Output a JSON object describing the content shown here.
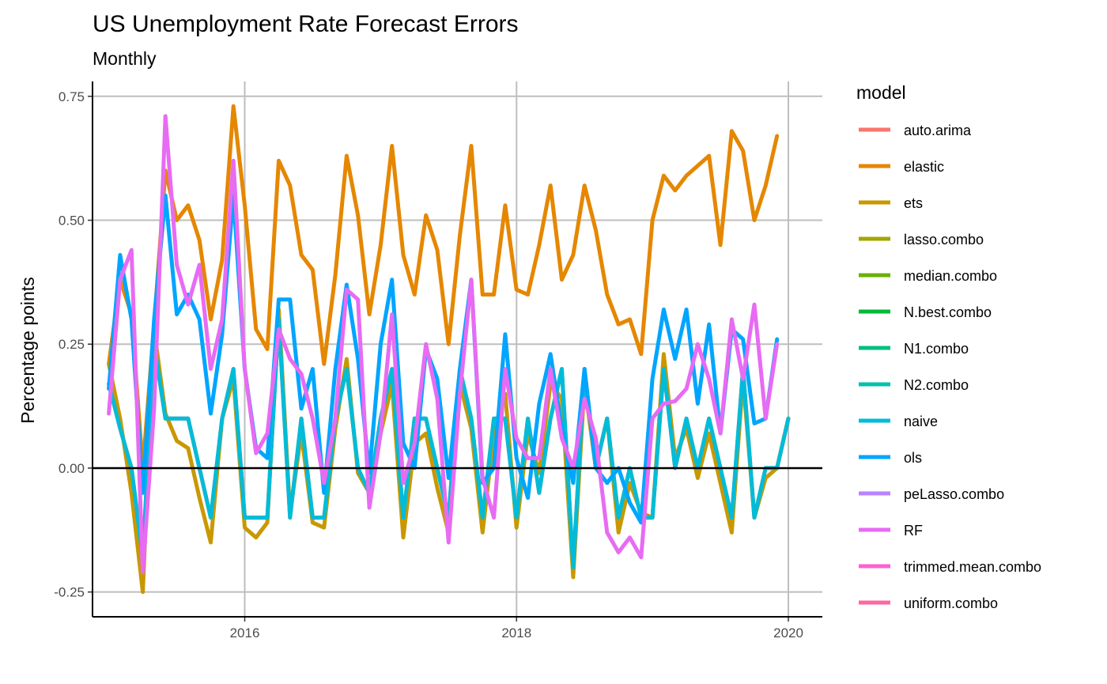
{
  "chart_data": {
    "type": "line",
    "title": "US Unemployment Rate Forecast Errors",
    "subtitle": "Monthly",
    "ylabel": "Percentage points",
    "xlabel": "",
    "x_ticks": [
      {
        "value": 2016,
        "label": "2016"
      },
      {
        "value": 2018,
        "label": "2018"
      },
      {
        "value": 2020,
        "label": "2020"
      }
    ],
    "y_ticks": [
      {
        "value": -0.25,
        "label": "-0.25"
      },
      {
        "value": 0,
        "label": "0.00"
      },
      {
        "value": 0.25,
        "label": "0.25"
      },
      {
        "value": 0.5,
        "label": "0.50"
      },
      {
        "value": 0.75,
        "label": "0.75"
      }
    ],
    "xlim": [
      2014.88,
      2020.25
    ],
    "ylim": [
      -0.3,
      0.78
    ],
    "grid": true,
    "zero_line": true,
    "legend_title": "model",
    "legend_position": "right",
    "x_start": 2015.0,
    "x_step": 0.08333,
    "series": [
      {
        "name": "auto.arima",
        "color": "#F8766D",
        "values": [
          0.17,
          0.08,
          0.0,
          -0.18,
          0.25,
          0.1,
          0.1,
          0.1,
          0.0,
          -0.1,
          0.1,
          0.2,
          -0.1,
          -0.1,
          -0.1,
          0.3,
          -0.1,
          0.1,
          -0.1,
          -0.1,
          0.1,
          0.2,
          0.0,
          -0.05,
          0.1,
          0.2,
          -0.1,
          0.1,
          0.1,
          0.0,
          -0.1,
          0.2,
          0.1,
          -0.1,
          0.1,
          0.1,
          -0.1,
          0.1,
          -0.05,
          0.1,
          0.2,
          -0.2,
          0.2,
          0.0,
          0.1,
          -0.1,
          0.0,
          -0.1,
          -0.1,
          0.2,
          0.0,
          0.1,
          0.0,
          0.1,
          0.0,
          -0.1,
          0.2,
          -0.1,
          0.0,
          0.0,
          0.1
        ]
      },
      {
        "name": "elastic",
        "color": "#E58700",
        "values": [
          0.21,
          0.38,
          0.31,
          0.0,
          0.29,
          0.6,
          0.5,
          0.53,
          0.46,
          0.3,
          0.42,
          0.73,
          0.53,
          0.28,
          0.24,
          0.62,
          0.57,
          0.43,
          0.4,
          0.21,
          0.39,
          0.63,
          0.51,
          0.31,
          0.45,
          0.65,
          0.43,
          0.35,
          0.51,
          0.44,
          0.25,
          0.47,
          0.65,
          0.35,
          0.35,
          0.53,
          0.36,
          0.35,
          0.45,
          0.57,
          0.38,
          0.43,
          0.57,
          0.48,
          0.35,
          0.29,
          0.3,
          0.23,
          0.5,
          0.59,
          0.56,
          0.59,
          0.61,
          0.63,
          0.45,
          0.68,
          0.64,
          0.5,
          0.57,
          0.67
        ]
      },
      {
        "name": "ets",
        "color": "#C99800",
        "values": [
          0.21,
          0.1,
          -0.05,
          -0.25,
          0.28,
          0.11,
          0.055,
          0.04,
          -0.06,
          -0.15,
          0.1,
          0.18,
          -0.12,
          -0.14,
          -0.11,
          0.32,
          -0.09,
          0.07,
          -0.11,
          -0.12,
          0.08,
          0.22,
          -0.01,
          -0.05,
          0.07,
          0.17,
          -0.14,
          0.05,
          0.07,
          -0.04,
          -0.13,
          0.17,
          0.08,
          -0.13,
          0.07,
          0.15,
          -0.12,
          0.07,
          -0.01,
          0.17,
          0.14,
          -0.22,
          0.17,
          0.0,
          0.1,
          -0.13,
          -0.03,
          -0.09,
          -0.1,
          0.23,
          0.02,
          0.08,
          -0.02,
          0.07,
          -0.03,
          -0.13,
          0.18,
          -0.1,
          -0.02,
          0.0,
          0.1
        ]
      },
      {
        "name": "lasso.combo",
        "color": "#A3A500",
        "values": []
      },
      {
        "name": "median.combo",
        "color": "#6BB100",
        "values": []
      },
      {
        "name": "N.best.combo",
        "color": "#00BA38",
        "values": []
      },
      {
        "name": "N1.combo",
        "color": "#00BF7D",
        "values": []
      },
      {
        "name": "N2.combo",
        "color": "#00C0AF",
        "values": []
      },
      {
        "name": "naive",
        "color": "#00BCD8",
        "values": [
          0.17,
          0.08,
          0.0,
          -0.18,
          0.25,
          0.1,
          0.1,
          0.1,
          0.0,
          -0.1,
          0.1,
          0.2,
          -0.1,
          -0.1,
          -0.1,
          0.3,
          -0.1,
          0.1,
          -0.1,
          -0.1,
          0.1,
          0.2,
          0.0,
          -0.05,
          0.1,
          0.2,
          -0.1,
          0.1,
          0.1,
          0.0,
          -0.1,
          0.2,
          0.1,
          -0.1,
          0.1,
          0.1,
          -0.1,
          0.1,
          -0.05,
          0.1,
          0.2,
          -0.2,
          0.2,
          0.0,
          0.1,
          -0.1,
          0.0,
          -0.1,
          -0.1,
          0.2,
          0.0,
          0.1,
          0.0,
          0.1,
          0.0,
          -0.1,
          0.2,
          -0.1,
          0.0,
          0.0,
          0.1
        ]
      },
      {
        "name": "ols",
        "color": "#00A5FF",
        "values": [
          0.16,
          0.43,
          0.3,
          -0.05,
          0.3,
          0.55,
          0.31,
          0.35,
          0.3,
          0.11,
          0.27,
          0.55,
          0.2,
          0.04,
          0.02,
          0.34,
          0.34,
          0.12,
          0.2,
          -0.05,
          0.2,
          0.37,
          0.22,
          -0.01,
          0.25,
          0.38,
          0.05,
          0.0,
          0.24,
          0.18,
          -0.02,
          0.2,
          0.38,
          -0.03,
          0.0,
          0.27,
          0.02,
          -0.06,
          0.13,
          0.23,
          0.08,
          -0.03,
          0.2,
          0.0,
          -0.03,
          0.0,
          -0.07,
          -0.11,
          0.18,
          0.32,
          0.22,
          0.32,
          0.13,
          0.29,
          0.07,
          0.28,
          0.26,
          0.09,
          0.1,
          0.26
        ]
      },
      {
        "name": "peLasso.combo",
        "color": "#B983FF",
        "values": []
      },
      {
        "name": "RF",
        "color": "#E76BF3",
        "values": [
          0.11,
          0.38,
          0.44,
          -0.21,
          0.12,
          0.71,
          0.41,
          0.33,
          0.41,
          0.2,
          0.3,
          0.62,
          0.2,
          0.03,
          0.07,
          0.28,
          0.22,
          0.19,
          0.1,
          -0.03,
          0.1,
          0.36,
          0.34,
          -0.08,
          0.07,
          0.31,
          -0.03,
          0.05,
          0.25,
          0.14,
          -0.15,
          0.15,
          0.38,
          -0.02,
          -0.1,
          0.2,
          0.06,
          0.02,
          0.02,
          0.2,
          0.06,
          0.0,
          0.14,
          0.06,
          -0.13,
          -0.17,
          -0.14,
          -0.18,
          0.1,
          0.13,
          0.135,
          0.16,
          0.25,
          0.18,
          0.07,
          0.3,
          0.18,
          0.33,
          0.1,
          0.25
        ]
      },
      {
        "name": "trimmed.mean.combo",
        "color": "#FD61D1",
        "values": []
      },
      {
        "name": "uniform.combo",
        "color": "#FF67A4",
        "values": []
      }
    ]
  }
}
